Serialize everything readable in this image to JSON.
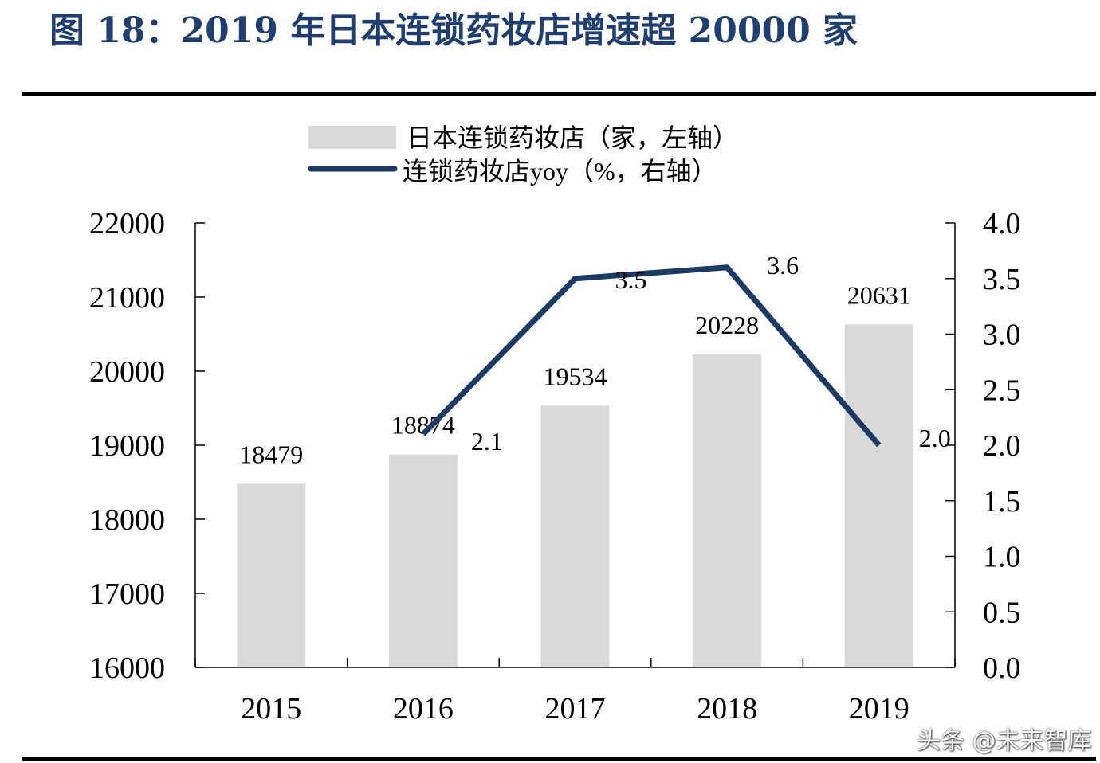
{
  "title": "图 18：2019 年日本连锁药妆店增速超 20000 家",
  "watermark": "头条 @未来智库",
  "colors": {
    "title": "#1f3f73",
    "bar": "#d9d9d9",
    "line": "#1b3a66"
  },
  "chart_data": {
    "type": "bar+line",
    "categories": [
      "2015",
      "2016",
      "2017",
      "2018",
      "2019"
    ],
    "series": [
      {
        "name": "日本连锁药妆店（家，左轴）",
        "type": "bar",
        "axis": "left",
        "values": [
          18479,
          18874,
          19534,
          20228,
          20631
        ],
        "labels": [
          "18479",
          "18874",
          "19534",
          "20228",
          "20631"
        ]
      },
      {
        "name": "连锁药妆店yoy（%，右轴）",
        "type": "line",
        "axis": "right",
        "values": [
          null,
          2.1,
          3.5,
          3.6,
          2.0
        ],
        "labels": [
          "",
          "2.1",
          "3.5",
          "3.6",
          "2.0"
        ]
      }
    ],
    "ylim_left": [
      16000,
      22000
    ],
    "yticks_left": [
      "16000",
      "17000",
      "18000",
      "19000",
      "20000",
      "21000",
      "22000"
    ],
    "ylim_right": [
      0,
      4.0
    ],
    "yticks_right": [
      "0.0",
      "0.5",
      "1.0",
      "1.5",
      "2.0",
      "2.5",
      "3.0",
      "3.5",
      "4.0"
    ],
    "legend_position": "top",
    "grid": false
  }
}
